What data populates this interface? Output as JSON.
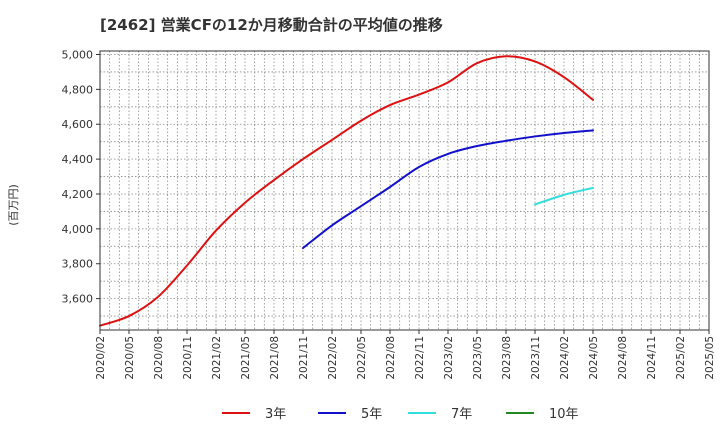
{
  "chart_data": {
    "type": "line",
    "title": "[2462]  営業CFの12か月移動合計の平均値の推移",
    "ylabel": "(百万円)",
    "xlabel": "",
    "ylim": [
      3420,
      5020
    ],
    "yticks": [
      3600,
      3800,
      4000,
      4200,
      4400,
      4600,
      4800,
      5000
    ],
    "ytick_labels": [
      "3,600",
      "3,800",
      "4,000",
      "4,200",
      "4,400",
      "4,600",
      "4,800",
      "5,000"
    ],
    "x_tick_labels": [
      "2020/02",
      "2020/05",
      "2020/08",
      "2020/11",
      "2021/02",
      "2021/05",
      "2021/08",
      "2021/11",
      "2022/02",
      "2022/05",
      "2022/08",
      "2022/11",
      "2023/02",
      "2023/05",
      "2023/08",
      "2023/11",
      "2024/02",
      "2024/05",
      "2024/08",
      "2024/11",
      "2025/02",
      "2025/05"
    ],
    "grid": true,
    "legend_position": "bottom",
    "series": [
      {
        "name": "3年",
        "color": "#dd1111",
        "x": [
          "2020/02",
          "2020/05",
          "2020/08",
          "2020/11",
          "2021/02",
          "2021/05",
          "2021/08",
          "2021/11",
          "2022/02",
          "2022/05",
          "2022/08",
          "2022/11",
          "2023/02",
          "2023/05",
          "2023/08",
          "2023/11",
          "2024/02",
          "2024/05"
        ],
        "values": [
          3445,
          3500,
          3610,
          3790,
          3990,
          4150,
          4280,
          4400,
          4510,
          4620,
          4710,
          4770,
          4840,
          4950,
          4990,
          4960,
          4870,
          4740
        ]
      },
      {
        "name": "5年",
        "color": "#1111cc",
        "x": [
          "2021/11",
          "2022/02",
          "2022/05",
          "2022/08",
          "2022/11",
          "2023/02",
          "2023/05",
          "2023/08",
          "2023/11",
          "2024/02",
          "2024/05"
        ],
        "values": [
          3890,
          4020,
          4130,
          4240,
          4355,
          4430,
          4475,
          4505,
          4530,
          4550,
          4565
        ]
      },
      {
        "name": "7年",
        "color": "#33dddd",
        "x": [
          "2023/11",
          "2024/02",
          "2024/05"
        ],
        "values": [
          4140,
          4195,
          4235
        ]
      },
      {
        "name": "10年",
        "color": "#228822",
        "x": [],
        "values": []
      }
    ]
  }
}
